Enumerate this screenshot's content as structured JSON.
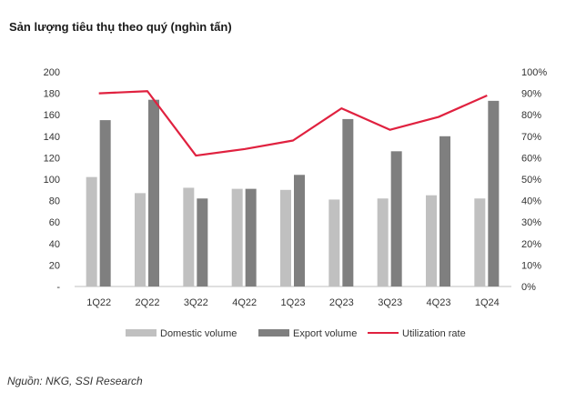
{
  "title": "Sản lượng tiêu thụ theo quý (nghìn tấn)",
  "source": "Nguồn: NKG, SSI Research",
  "colors": {
    "domestic": "#c0c0c0",
    "export": "#7f7f7f",
    "utilization": "#e0213f",
    "axis": "#bfbfbf",
    "text": "#333333"
  },
  "chart_data": {
    "type": "bar",
    "title": "Sản lượng tiêu thụ theo quý (nghìn tấn)",
    "categories": [
      "1Q22",
      "2Q22",
      "3Q22",
      "4Q22",
      "1Q23",
      "2Q23",
      "3Q23",
      "4Q23",
      "1Q24"
    ],
    "series": [
      {
        "name": "Domestic volume",
        "type": "bar",
        "axis": "left",
        "values": [
          102,
          87,
          92,
          91,
          90,
          81,
          82,
          85,
          82
        ]
      },
      {
        "name": "Export volume",
        "type": "bar",
        "axis": "left",
        "values": [
          155,
          174,
          82,
          91,
          104,
          156,
          126,
          140,
          173
        ]
      },
      {
        "name": "Utilization rate",
        "type": "line",
        "axis": "right",
        "values": [
          90,
          91,
          61,
          64,
          68,
          83,
          73,
          79,
          89
        ]
      }
    ],
    "ylim": [
      0,
      200
    ],
    "y_ticks": [
      "-",
      "20",
      "40",
      "60",
      "80",
      "100",
      "120",
      "140",
      "160",
      "180",
      "200"
    ],
    "y2lim": [
      0,
      100
    ],
    "y2_ticks": [
      "0%",
      "10%",
      "20%",
      "30%",
      "40%",
      "50%",
      "60%",
      "70%",
      "80%",
      "90%",
      "100%"
    ],
    "xlabel": "",
    "ylabel": "",
    "grid": false,
    "legend": "bottom"
  }
}
